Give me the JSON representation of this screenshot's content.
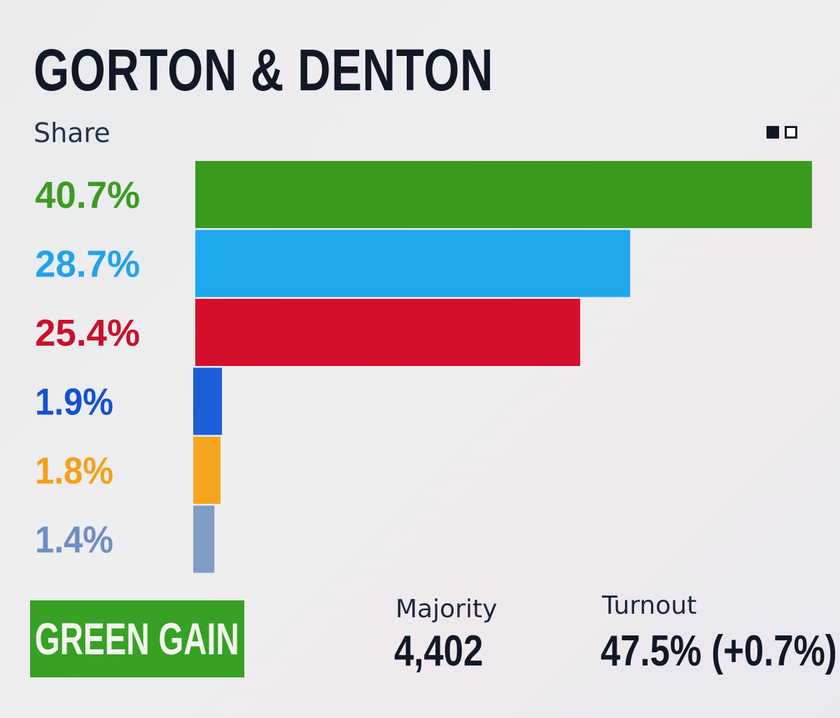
{
  "title": "GORTON & DENTON",
  "subtitle": "Share",
  "chart_data": {
    "type": "bar",
    "orientation": "horizontal",
    "xlim": [
      0,
      40.7
    ],
    "values": [
      40.7,
      28.7,
      25.4,
      1.9,
      1.8,
      1.4
    ],
    "labels": [
      "40.7%",
      "28.7%",
      "25.4%",
      "1.9%",
      "1.8%",
      "1.4%"
    ],
    "colors": [
      "#3a9a1e",
      "#1ea8ee",
      "#d40f2c",
      "#1b5fd8",
      "#f5a51d",
      "#7f9cc7"
    ],
    "label_colors": [
      "#3e9a24",
      "#22a3e9",
      "#c8102e",
      "#1650cf",
      "#f4a019",
      "#6f8ec2"
    ]
  },
  "result_badge": "GREEN GAIN",
  "majority": {
    "label": "Majority",
    "value": "4,402"
  },
  "turnout": {
    "label": "Turnout",
    "value": "47.5% (+0.7%)"
  }
}
